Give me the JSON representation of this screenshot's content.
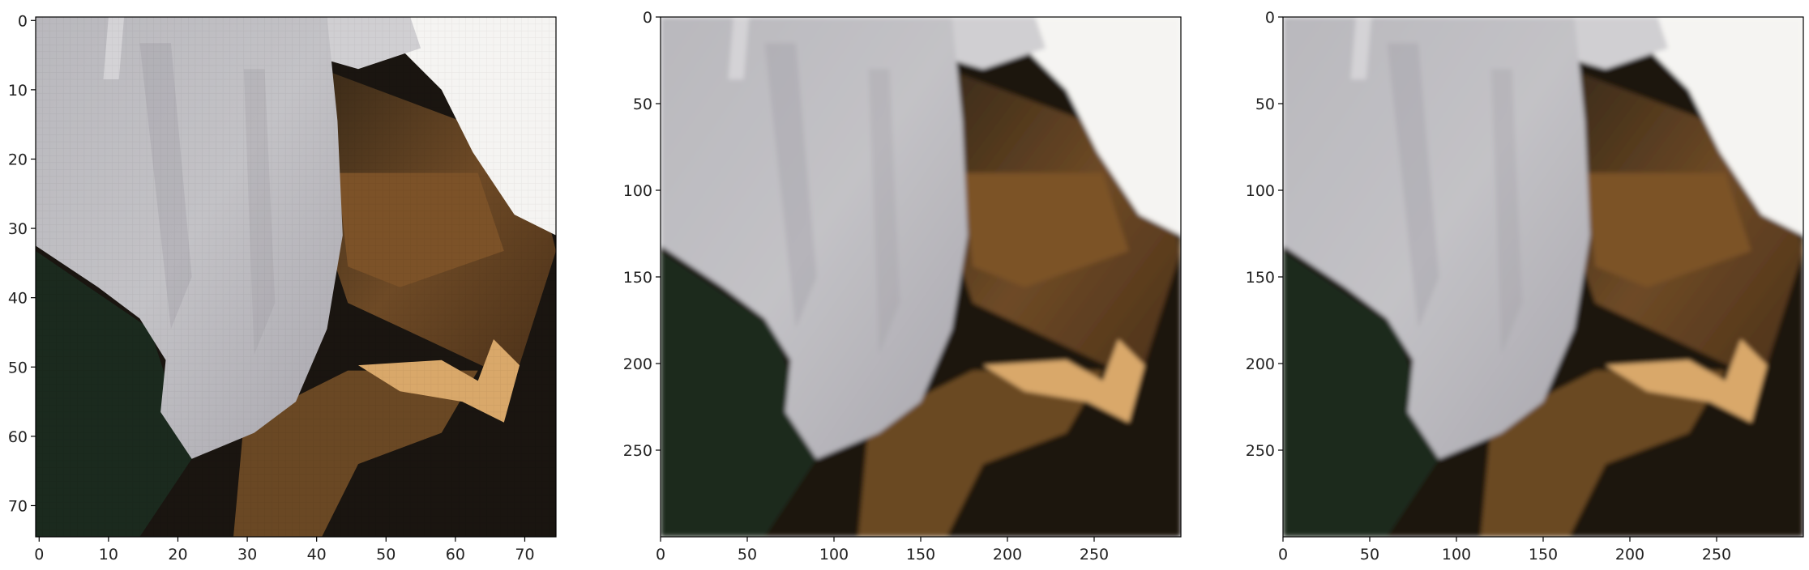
{
  "panels": [
    {
      "name": "low-res-input",
      "image_size": 75,
      "xticks": [
        "0",
        "10",
        "20",
        "30",
        "40",
        "50",
        "60",
        "70"
      ],
      "xtick_values": [
        0,
        10,
        20,
        30,
        40,
        50,
        60,
        70
      ],
      "yticks": [
        "0",
        "10",
        "20",
        "30",
        "40",
        "50",
        "60",
        "70"
      ],
      "ytick_values": [
        0,
        10,
        20,
        30,
        40,
        50,
        60,
        70
      ],
      "pixelated": true
    },
    {
      "name": "upscaled-output-a",
      "image_size": 300,
      "xticks": [
        "0",
        "50",
        "100",
        "150",
        "200",
        "250"
      ],
      "xtick_values": [
        0,
        50,
        100,
        150,
        200,
        250
      ],
      "yticks": [
        "0",
        "50",
        "100",
        "150",
        "200",
        "250"
      ],
      "ytick_values": [
        0,
        50,
        100,
        150,
        200,
        250
      ],
      "pixelated": false
    },
    {
      "name": "upscaled-output-b",
      "image_size": 300,
      "xticks": [
        "0",
        "50",
        "100",
        "150",
        "200",
        "250"
      ],
      "xtick_values": [
        0,
        50,
        100,
        150,
        200,
        250
      ],
      "yticks": [
        "0",
        "50",
        "100",
        "150",
        "200",
        "250"
      ],
      "ytick_values": [
        0,
        50,
        100,
        150,
        200,
        250
      ],
      "pixelated": false
    }
  ],
  "colors": {
    "petal": "#c3c2c6",
    "petal_shadow": "#9e9ca3",
    "background_white": "#f5f4f2",
    "dark": "#1a1510",
    "brown": "#6e4a26",
    "tan": "#d9a86a",
    "green_dark": "#1b2a1e"
  }
}
